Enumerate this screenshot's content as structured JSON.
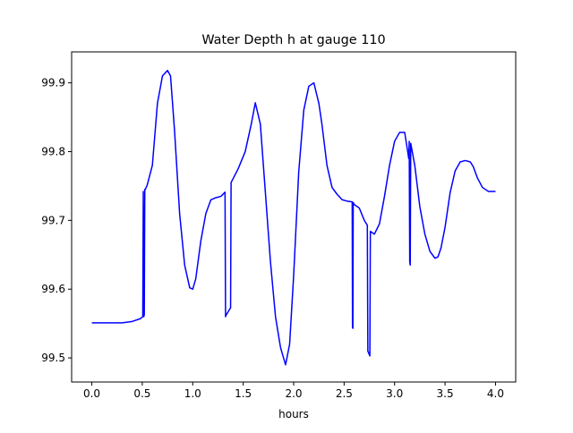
{
  "chart_data": {
    "type": "line",
    "title": "Water Depth h at gauge 110",
    "xlabel": "hours",
    "ylabel": "",
    "xlim": [
      -0.2,
      4.2
    ],
    "ylim": [
      99.465,
      99.945
    ],
    "xticks": [
      0.0,
      0.5,
      1.0,
      1.5,
      2.0,
      2.5,
      3.0,
      3.5,
      4.0
    ],
    "xtick_labels": [
      "0.0",
      "0.5",
      "1.0",
      "1.5",
      "2.0",
      "2.5",
      "3.0",
      "3.5",
      "4.0"
    ],
    "yticks": [
      99.5,
      99.6,
      99.7,
      99.8,
      99.9
    ],
    "ytick_labels": [
      "99.5",
      "99.6",
      "99.7",
      "99.8",
      "99.9"
    ],
    "grid": false,
    "colors": {
      "series": "#0000ff",
      "axes": "#000000",
      "background": "#ffffff"
    },
    "series": [
      {
        "name": "",
        "x": [
          0.0,
          0.15,
          0.3,
          0.4,
          0.48,
          0.505,
          0.51,
          0.515,
          0.52,
          0.525,
          0.53,
          0.545,
          0.55,
          0.6,
          0.65,
          0.7,
          0.75,
          0.78,
          0.82,
          0.87,
          0.92,
          0.97,
          1.0,
          1.03,
          1.08,
          1.13,
          1.18,
          1.23,
          1.28,
          1.32,
          1.325,
          1.33,
          1.35,
          1.375,
          1.38,
          1.45,
          1.52,
          1.58,
          1.62,
          1.67,
          1.72,
          1.77,
          1.82,
          1.87,
          1.92,
          1.96,
          2.0,
          2.05,
          2.1,
          2.15,
          2.2,
          2.25,
          2.28,
          2.33,
          2.38,
          2.43,
          2.48,
          2.53,
          2.58,
          2.583,
          2.587,
          2.59,
          2.6,
          2.65,
          2.7,
          2.73,
          2.735,
          2.755,
          2.76,
          2.8,
          2.85,
          2.9,
          2.95,
          3.0,
          3.05,
          3.1,
          3.13,
          3.14,
          3.145,
          3.15,
          3.155,
          3.16,
          3.2,
          3.25,
          3.3,
          3.35,
          3.4,
          3.43,
          3.46,
          3.5,
          3.55,
          3.6,
          3.65,
          3.7,
          3.75,
          3.78,
          3.82,
          3.87,
          3.93,
          4.0
        ],
        "y": [
          99.551,
          99.551,
          99.551,
          99.553,
          99.557,
          99.56,
          99.742,
          99.56,
          99.563,
          99.745,
          99.745,
          99.75,
          99.752,
          99.78,
          99.87,
          99.91,
          99.918,
          99.91,
          99.83,
          99.71,
          99.635,
          99.602,
          99.6,
          99.615,
          99.67,
          99.71,
          99.73,
          99.733,
          99.735,
          99.741,
          99.56,
          99.562,
          99.567,
          99.573,
          99.755,
          99.775,
          99.8,
          99.84,
          99.871,
          99.84,
          99.74,
          99.64,
          99.56,
          99.515,
          99.49,
          99.52,
          99.62,
          99.77,
          99.86,
          99.895,
          99.9,
          99.87,
          99.84,
          99.78,
          99.748,
          99.738,
          99.73,
          99.728,
          99.727,
          99.545,
          99.543,
          99.726,
          99.723,
          99.718,
          99.7,
          99.693,
          99.51,
          99.503,
          99.684,
          99.68,
          99.695,
          99.735,
          99.78,
          99.815,
          99.828,
          99.828,
          99.8,
          99.79,
          99.815,
          99.64,
          99.635,
          99.812,
          99.78,
          99.72,
          99.68,
          99.655,
          99.645,
          99.647,
          99.66,
          99.69,
          99.74,
          99.772,
          99.785,
          99.787,
          99.785,
          99.778,
          99.762,
          99.748,
          99.742,
          99.742
        ]
      }
    ]
  }
}
